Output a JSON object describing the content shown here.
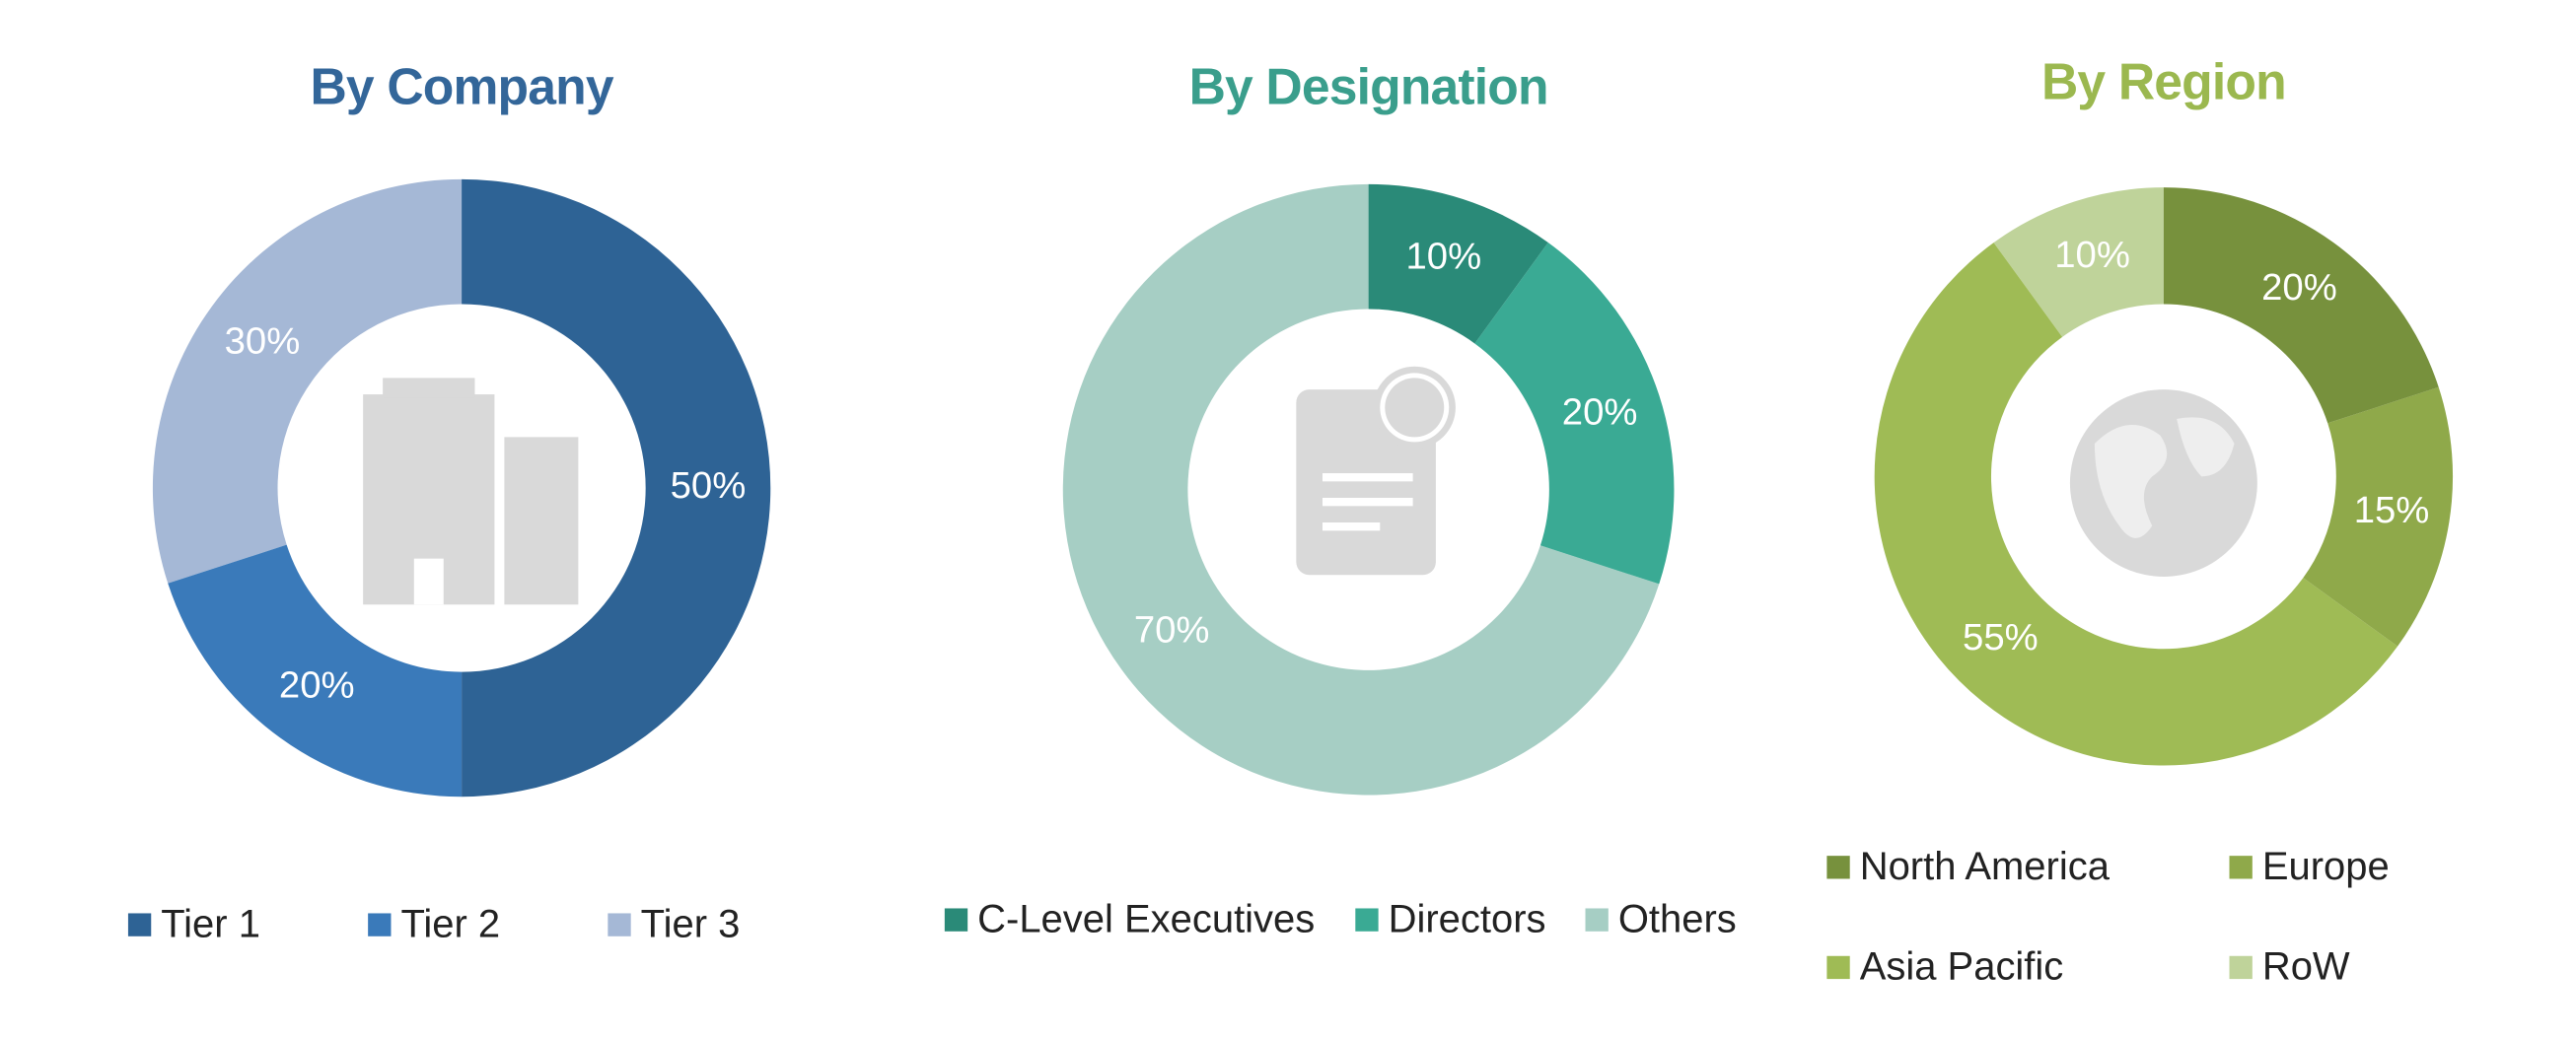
{
  "chart_data": [
    {
      "type": "donut",
      "title": "By Company",
      "title_color": "#336699",
      "categories": [
        "Tier 1",
        "Tier 2",
        "Tier 3"
      ],
      "values": [
        50,
        20,
        30
      ],
      "value_labels": [
        "50%",
        "20%",
        "30%"
      ],
      "colors": [
        "#2e6395",
        "#3a7aba",
        "#a5b8d6"
      ]
    },
    {
      "type": "donut",
      "title": "By Designation",
      "title_color": "#3a9e8c",
      "categories": [
        "C-Level Executives",
        "Directors",
        "Others"
      ],
      "values": [
        10,
        20,
        70
      ],
      "value_labels": [
        "10%",
        "20%",
        "70%"
      ],
      "colors": [
        "#2a8a78",
        "#3aaa94",
        "#a6cec4"
      ]
    },
    {
      "type": "donut",
      "title": "By Region",
      "title_color": "#9bb84f",
      "categories": [
        "North America",
        "Europe",
        "Asia Pacific",
        "RoW"
      ],
      "values": [
        20,
        15,
        55,
        10
      ],
      "value_labels": [
        "20%",
        "15%",
        "55%",
        "10%"
      ],
      "colors": [
        "#77913d",
        "#8fa94a",
        "#9fbb55",
        "#bfd39a"
      ]
    }
  ]
}
